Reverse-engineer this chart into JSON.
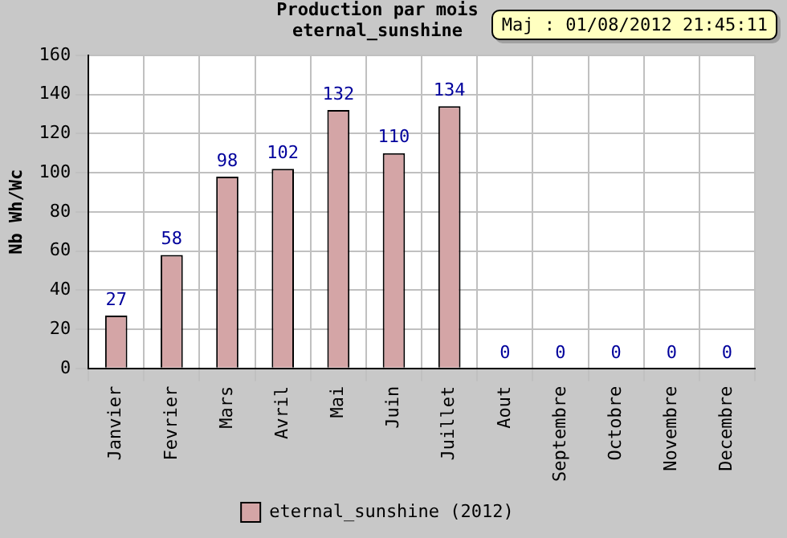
{
  "chart_data": {
    "type": "bar",
    "title": "Production par mois",
    "subtitle": "eternal_sunshine",
    "ylabel": "Nb Wh/Wc",
    "annotations": [
      "Maj : 01/08/2012 21:45:11"
    ],
    "categories": [
      "Janvier",
      "Fevrier",
      "Mars",
      "Avril",
      "Mai",
      "Juin",
      "Juillet",
      "Aout",
      "Septembre",
      "Octobre",
      "Novembre",
      "Decembre"
    ],
    "series": [
      {
        "name": "eternal_sunshine (2012)",
        "color": "#d4a5a6",
        "values": [
          27,
          58,
          98,
          102,
          132,
          110,
          134,
          0,
          0,
          0,
          0,
          0
        ]
      }
    ],
    "ylim": [
      0,
      160
    ],
    "yticks": [
      0,
      20,
      40,
      60,
      80,
      100,
      120,
      140,
      160
    ],
    "grid": true,
    "legend": "bottom",
    "data_labels": true
  }
}
